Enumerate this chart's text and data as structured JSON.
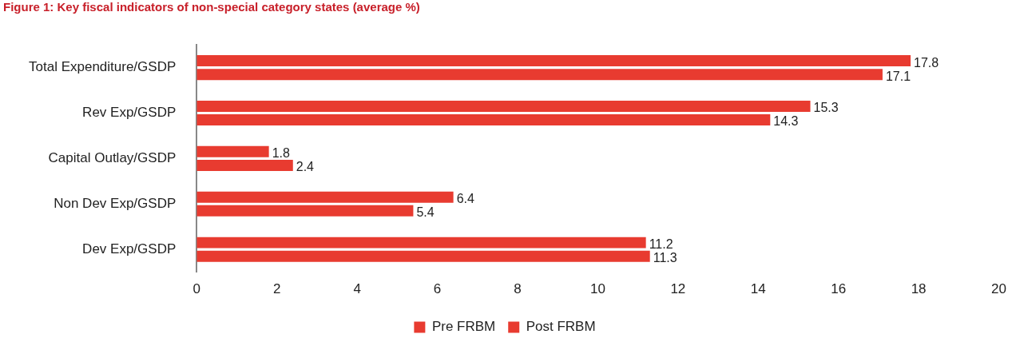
{
  "chart_data": {
    "type": "bar",
    "orientation": "horizontal",
    "title": "Figure 1: Key fiscal indicators of non-special category states (average %)",
    "categories": [
      "Total Expenditure/GSDP",
      "Rev Exp/GSDP",
      "Capital Outlay/GSDP",
      "Non Dev Exp/GSDP",
      "Dev Exp/GSDP"
    ],
    "series": [
      {
        "name": "Pre FRBM",
        "color": "#e83b30",
        "values": [
          17.8,
          15.3,
          1.8,
          6.4,
          11.2
        ]
      },
      {
        "name": "Post FRBM",
        "color": "#e83b30",
        "values": [
          17.1,
          14.3,
          2.4,
          5.4,
          11.3
        ]
      }
    ],
    "xlim": [
      0,
      20
    ],
    "xticks": [
      0,
      2,
      4,
      6,
      8,
      10,
      12,
      14,
      16,
      18,
      20
    ],
    "grid": false,
    "legend": "bottom",
    "data_labels": true
  }
}
